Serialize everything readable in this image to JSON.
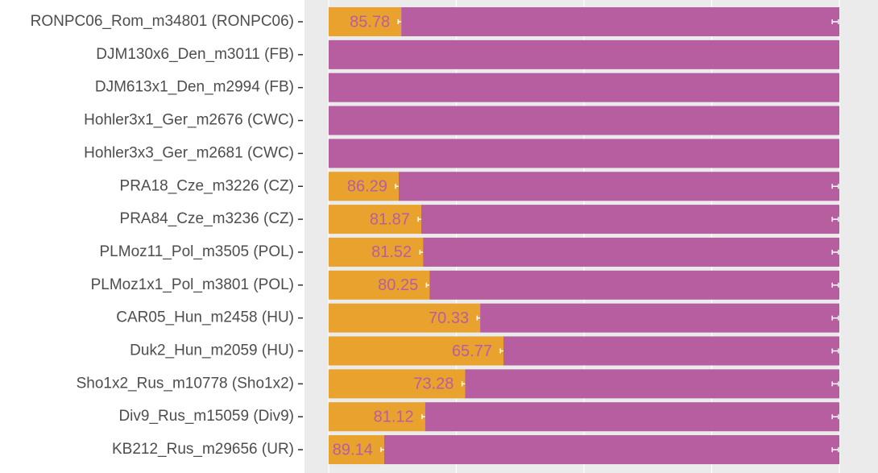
{
  "chart_data": {
    "type": "stacked_barh",
    "categories": [
      "RONPC06_Rom_m34801 (RONPC06)",
      "DJM130x6_Den_m3011 (FB)",
      "DJM613x1_Den_m2994 (FB)",
      "Hohler3x1_Ger_m2676 (CWC)",
      "Hohler3x3_Ger_m2681 (CWC)",
      "PRA18_Cze_m3226 (CZ)",
      "PRA84_Cze_m3236 (CZ)",
      "PLMoz11_Pol_m3505 (POL)",
      "PLMoz1x1_Pol_m3801 (POL)",
      "CAR05_Hun_m2458 (HU)",
      "Duk2_Hun_m2059 (HU)",
      "Sho1x2_Rus_m10778 (Sho1x2)",
      "Div9_Rus_m15059 (Div9)",
      "KB212_Rus_m29656 (UR)"
    ],
    "series": [
      {
        "color": "#eaa22f",
        "values": [
          14.22,
          0,
          0,
          0,
          0,
          13.71,
          18.13,
          18.48,
          19.75,
          29.67,
          34.23,
          26.72,
          18.88,
          10.86
        ],
        "errors": [
          0.6,
          null,
          null,
          null,
          null,
          0.6,
          0.6,
          0.6,
          0.6,
          0.6,
          0.6,
          0.6,
          0.6,
          0.6
        ]
      },
      {
        "color": "#b65e9f",
        "values": [
          85.78,
          100,
          100,
          100,
          100,
          86.29,
          81.87,
          81.52,
          80.25,
          70.33,
          65.77,
          73.28,
          81.12,
          89.14
        ],
        "value_labels": [
          "85.78",
          null,
          null,
          null,
          null,
          "86.29",
          "81.87",
          "81.52",
          "80.25",
          "70.33",
          "65.77",
          "73.28",
          "81.12",
          "89.14"
        ],
        "errors": [
          0.6,
          null,
          null,
          null,
          null,
          0.6,
          0.6,
          0.6,
          0.6,
          0.6,
          0.6,
          0.6,
          0.6,
          0.6
        ]
      }
    ],
    "xlim": [
      -4.73,
      107.57
    ],
    "xticks": [
      0,
      25,
      50,
      75,
      100
    ],
    "grid": true
  }
}
